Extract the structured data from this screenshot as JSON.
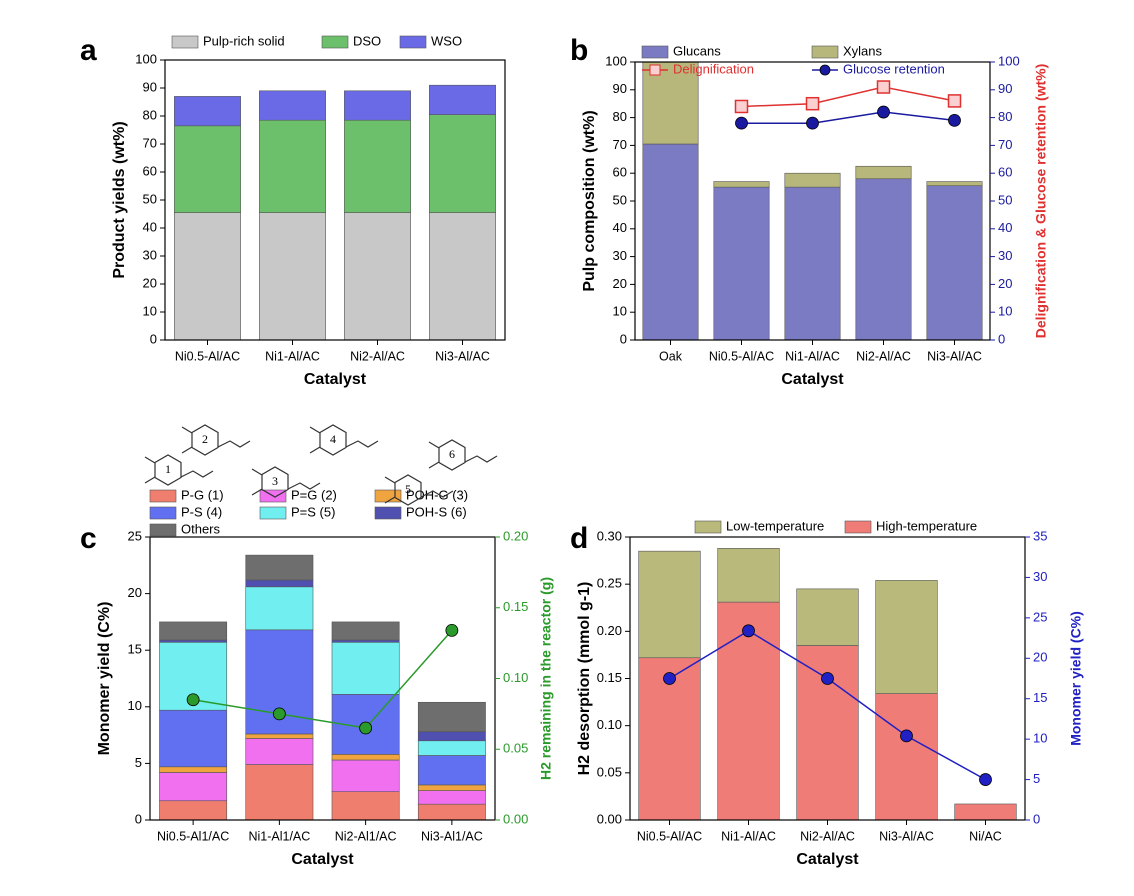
{
  "chart_data": [
    {
      "type": "bar",
      "stacked": true,
      "panel_label": "a",
      "x_label": "Catalyst",
      "y_label": "Product yields (wt%)",
      "categories": [
        "Ni0.5-Al/AC",
        "Ni1-Al/AC",
        "Ni2-Al/AC",
        "Ni3-Al/AC"
      ],
      "series": [
        {
          "name": "Pulp-rich solid",
          "color": "#c8c8c8",
          "values": [
            45.5,
            45.5,
            45.5,
            45.5
          ]
        },
        {
          "name": "DSO",
          "color": "#6cc06c",
          "values": [
            31,
            33,
            33,
            35
          ]
        },
        {
          "name": "WSO",
          "color": "#6a6ae6",
          "values": [
            10.5,
            10.5,
            10.5,
            10.5
          ]
        }
      ],
      "ylim": [
        0,
        100
      ],
      "yticks": [
        0,
        10,
        20,
        30,
        40,
        50,
        60,
        70,
        80,
        90,
        100
      ]
    },
    {
      "type": "bar",
      "stacked": true,
      "panel_label": "b",
      "x_label": "Catalyst",
      "y_label": "Pulp composition (wt%)",
      "y2_label": "Delignification & Glucose retention (wt%)",
      "categories": [
        "Oak",
        "Ni0.5-Al/AC",
        "Ni1-Al/AC",
        "Ni2-Al/AC",
        "Ni3-Al/AC"
      ],
      "series": [
        {
          "name": "Glucans",
          "color": "#7b7bc4",
          "values": [
            70.5,
            55,
            55,
            58,
            55.5
          ]
        },
        {
          "name": "Xylans",
          "color": "#b7b77c",
          "values": [
            29.5,
            2,
            5,
            4.5,
            1.5
          ]
        },
        {
          "name": "Delignification",
          "color": "#e03030",
          "axis": "y2",
          "marker": "square",
          "values": [
            null,
            84,
            85,
            91,
            86
          ]
        },
        {
          "name": "Glucose retention",
          "color": "#1a1aa0",
          "axis": "y2",
          "marker": "circle",
          "values": [
            null,
            78,
            78,
            82,
            79
          ]
        }
      ],
      "ylim": [
        0,
        100
      ],
      "yticks": [
        0,
        10,
        20,
        30,
        40,
        50,
        60,
        70,
        80,
        90,
        100
      ],
      "y2lim": [
        0,
        100
      ],
      "y2ticks": [
        0,
        10,
        20,
        30,
        40,
        50,
        60,
        70,
        80,
        90,
        100
      ]
    },
    {
      "type": "bar",
      "stacked": true,
      "panel_label": "c",
      "x_label": "Catalyst",
      "y_label": "Monomer yield (C%)",
      "y2_label": "H2 remaining in the reactor (g)",
      "annotations": [
        "1",
        "2",
        "3",
        "4",
        "5",
        "6"
      ],
      "categories": [
        "Ni0.5-Al1/AC",
        "Ni1-Al1/AC",
        "Ni2-Al1/AC",
        "Ni3-Al1/AC"
      ],
      "series": [
        {
          "name": "P-G (1)",
          "color": "#f07e6e",
          "values": [
            1.7,
            4.9,
            2.5,
            1.4
          ]
        },
        {
          "name": "P=G (2)",
          "color": "#f070f0",
          "values": [
            2.5,
            2.3,
            2.8,
            1.2
          ]
        },
        {
          "name": "POH-G (3)",
          "color": "#f0a440",
          "values": [
            0.5,
            0.4,
            0.5,
            0.5
          ]
        },
        {
          "name": "P-S (4)",
          "color": "#6070f0",
          "values": [
            5.0,
            9.2,
            5.3,
            2.6
          ]
        },
        {
          "name": "P=S (5)",
          "color": "#70eef0",
          "values": [
            6.0,
            3.8,
            4.6,
            1.3
          ]
        },
        {
          "name": "POH-S (6)",
          "color": "#5050b0",
          "values": [
            0.2,
            0.6,
            0.2,
            0.8
          ]
        },
        {
          "name": "Others",
          "color": "#6e6e6e",
          "values": [
            1.6,
            2.2,
            1.6,
            2.6
          ]
        },
        {
          "color": "#2a9a2a",
          "axis": "y2",
          "marker": "circle",
          "values": [
            0.085,
            0.075,
            0.065,
            0.134
          ]
        }
      ],
      "ylim": [
        0,
        25
      ],
      "yticks": [
        0,
        5,
        10,
        15,
        20,
        25
      ],
      "y2lim": [
        0,
        0.2
      ],
      "y2ticks": [
        {
          "value": 0,
          "label": "0.00"
        },
        {
          "value": 0.05,
          "label": "0.05"
        },
        {
          "value": 0.1,
          "label": "0.10"
        },
        {
          "value": 0.15,
          "label": "0.15"
        },
        {
          "value": 0.2,
          "label": "0.20"
        }
      ]
    },
    {
      "type": "bar",
      "stacked": true,
      "panel_label": "d",
      "x_label": "Catalyst",
      "y_label": "H2 desorption (mmol g-1)",
      "y2_label": "Monomer yield (C%)",
      "categories": [
        "Ni0.5-Al/AC",
        "Ni1-Al/AC",
        "Ni2-Al/AC",
        "Ni3-Al/AC",
        "Ni/AC"
      ],
      "series": [
        {
          "name": "High-temperature",
          "color": "#f07c78",
          "values": [
            0.172,
            0.231,
            0.185,
            0.134,
            0.017
          ]
        },
        {
          "name": "Low-temperature",
          "color": "#b9b97c",
          "values": [
            0.113,
            0.057,
            0.06,
            0.12,
            null
          ]
        },
        {
          "color": "#2020c4",
          "axis": "y2",
          "marker": "circle",
          "values": [
            17.5,
            23.4,
            17.5,
            10.4,
            5
          ]
        }
      ],
      "ylim": [
        0,
        0.3
      ],
      "yticks": [
        {
          "value": 0,
          "label": "0.00"
        },
        {
          "value": 0.05,
          "label": "0.05"
        },
        {
          "value": 0.1,
          "label": "0.10"
        },
        {
          "value": 0.15,
          "label": "0.15"
        },
        {
          "value": 0.2,
          "label": "0.20"
        },
        {
          "value": 0.25,
          "label": "0.25"
        },
        {
          "value": 0.3,
          "label": "0.30"
        }
      ],
      "y2lim": [
        0,
        35
      ],
      "y2ticks": [
        0,
        5,
        10,
        15,
        20,
        25,
        30,
        35
      ]
    }
  ]
}
